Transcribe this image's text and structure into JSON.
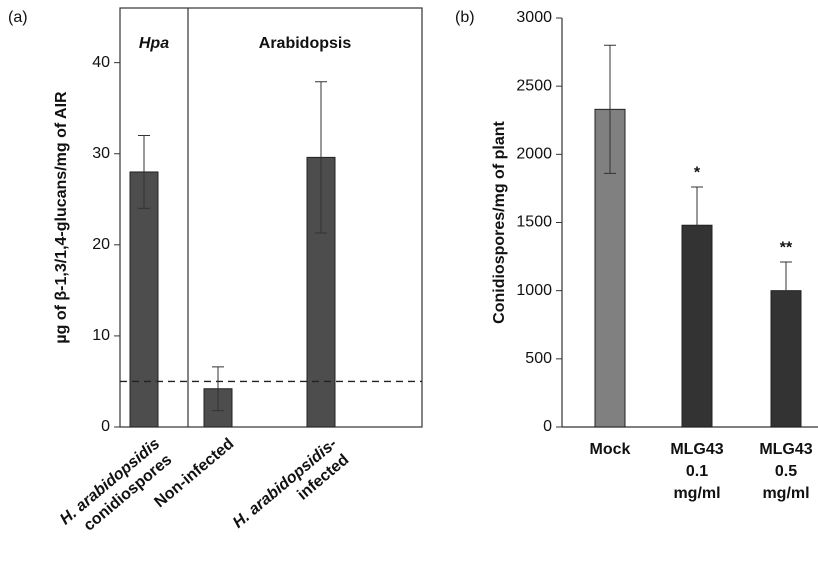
{
  "chart_data": [
    {
      "type": "bar",
      "panel_label": "(a)",
      "y_label": "µg of β-1,3/1,4-glucans/mg of AIR",
      "categories": [
        [
          "H. arabidopsidis",
          "conidiospores"
        ],
        [
          "Non-infected"
        ],
        [
          "H. arabidopsidis-",
          "infected"
        ]
      ],
      "values": [
        28,
        4.2,
        29.6
      ],
      "errors": [
        4,
        2.4,
        8.3
      ],
      "colors": [
        "#4d4d4d",
        "#4d4d4d",
        "#4d4d4d"
      ],
      "groups": [
        {
          "label": "Hpa",
          "span": 1
        },
        {
          "label": "Arabidopsis",
          "span": 2
        }
      ],
      "reference_line": 5,
      "ylim": [
        0,
        46
      ],
      "yticks": [
        0,
        10,
        20,
        30,
        40
      ]
    },
    {
      "type": "bar",
      "panel_label": "(b)",
      "y_label": "Conidiospores/mg of plant",
      "categories": [
        [
          "Mock"
        ],
        [
          "MLG43",
          "0.1",
          "mg/ml"
        ],
        [
          "MLG43",
          "0.5",
          "mg/ml"
        ]
      ],
      "values": [
        2330,
        1480,
        1000
      ],
      "errors": [
        470,
        280,
        210
      ],
      "colors": [
        "#808080",
        "#333333",
        "#333333"
      ],
      "significance": [
        null,
        "*",
        "**"
      ],
      "ylim": [
        0,
        3000
      ],
      "yticks": [
        0,
        500,
        1000,
        1500,
        2000,
        2500,
        3000
      ]
    }
  ]
}
